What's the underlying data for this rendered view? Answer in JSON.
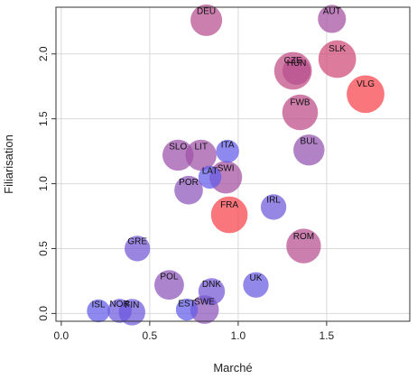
{
  "chart_data": {
    "type": "scatter",
    "title": "",
    "xlabel": "Marché",
    "ylabel": "Filiarisation",
    "xlim": [
      -0.03,
      1.97
    ],
    "ylim": [
      -0.06,
      2.36
    ],
    "xticks": [
      0.0,
      0.5,
      1.0,
      1.5
    ],
    "xtick_labels": [
      "0.0",
      "0.5",
      "1.0",
      "1.5"
    ],
    "yticks": [
      0.0,
      0.5,
      1.0,
      1.5,
      2.0
    ],
    "ytick_labels": [
      "0.0",
      "0.5",
      "1.0",
      "1.5",
      "2.0"
    ],
    "grid": true,
    "marker": "bubble",
    "color_low": "#5a5cf0",
    "color_high": "#ff4040",
    "points": [
      {
        "label": "DEU",
        "x": 0.82,
        "y": 2.26,
        "size": 0.34,
        "color_weight": 0.55
      },
      {
        "label": "AUT",
        "x": 1.53,
        "y": 2.27,
        "size": 0.27,
        "color_weight": 0.45
      },
      {
        "label": "SLK",
        "x": 1.56,
        "y": 1.96,
        "size": 0.46,
        "color_weight": 0.7
      },
      {
        "label": "CZE",
        "x": 1.31,
        "y": 1.87,
        "size": 0.46,
        "color_weight": 0.62
      },
      {
        "label": "HUN",
        "x": 1.33,
        "y": 1.87,
        "size": 0.27,
        "color_weight": 0.55
      },
      {
        "label": "VLG",
        "x": 1.72,
        "y": 1.69,
        "size": 0.46,
        "color_weight": 0.95
      },
      {
        "label": "FWB",
        "x": 1.35,
        "y": 1.55,
        "size": 0.42,
        "color_weight": 0.6
      },
      {
        "label": "BUL",
        "x": 1.4,
        "y": 1.26,
        "size": 0.33,
        "color_weight": 0.35
      },
      {
        "label": "ITA",
        "x": 0.94,
        "y": 1.25,
        "size": 0.17,
        "color_weight": 0.05
      },
      {
        "label": "SLO",
        "x": 0.66,
        "y": 1.22,
        "size": 0.33,
        "color_weight": 0.4
      },
      {
        "label": "LIT",
        "x": 0.79,
        "y": 1.22,
        "size": 0.33,
        "color_weight": 0.42
      },
      {
        "label": "LAT",
        "x": 0.84,
        "y": 1.05,
        "size": 0.17,
        "color_weight": 0.05
      },
      {
        "label": "SWI",
        "x": 0.93,
        "y": 1.05,
        "size": 0.36,
        "color_weight": 0.45
      },
      {
        "label": "POR",
        "x": 0.72,
        "y": 0.95,
        "size": 0.28,
        "color_weight": 0.3
      },
      {
        "label": "IRL",
        "x": 1.2,
        "y": 0.82,
        "size": 0.22,
        "color_weight": 0.12
      },
      {
        "label": "FRA",
        "x": 0.95,
        "y": 0.76,
        "size": 0.44,
        "color_weight": 0.95
      },
      {
        "label": "ROM",
        "x": 1.37,
        "y": 0.52,
        "size": 0.4,
        "color_weight": 0.55
      },
      {
        "label": "GRE",
        "x": 0.43,
        "y": 0.5,
        "size": 0.22,
        "color_weight": 0.15
      },
      {
        "label": "POL",
        "x": 0.61,
        "y": 0.22,
        "size": 0.3,
        "color_weight": 0.3
      },
      {
        "label": "UK",
        "x": 1.1,
        "y": 0.22,
        "size": 0.22,
        "color_weight": 0.08
      },
      {
        "label": "DNK",
        "x": 0.85,
        "y": 0.17,
        "size": 0.24,
        "color_weight": 0.15
      },
      {
        "label": "EST",
        "x": 0.71,
        "y": 0.03,
        "size": 0.15,
        "color_weight": 0.05
      },
      {
        "label": "SWE",
        "x": 0.81,
        "y": 0.03,
        "size": 0.28,
        "color_weight": 0.3
      },
      {
        "label": "ISL",
        "x": 0.21,
        "y": 0.02,
        "size": 0.17,
        "color_weight": 0.05
      },
      {
        "label": "NOR",
        "x": 0.33,
        "y": 0.02,
        "size": 0.19,
        "color_weight": 0.1
      },
      {
        "label": "FIN",
        "x": 0.4,
        "y": 0.01,
        "size": 0.24,
        "color_weight": 0.12
      }
    ]
  }
}
